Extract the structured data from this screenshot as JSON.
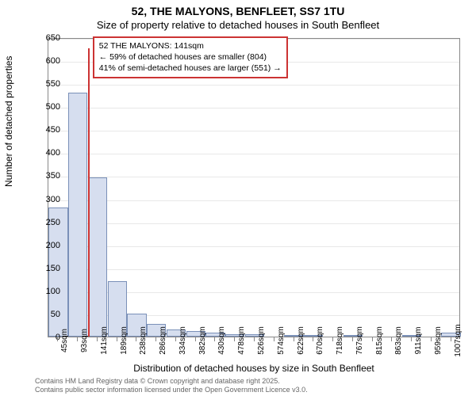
{
  "title": "52, THE MALYONS, BENFLEET, SS7 1TU",
  "subtitle": "Size of property relative to detached houses in South Benfleet",
  "y_label": "Number of detached properties",
  "x_label": "Distribution of detached houses by size in South Benfleet",
  "footnote_line1": "Contains HM Land Registry data © Crown copyright and database right 2025.",
  "footnote_line2": "Contains public sector information licensed under the Open Government Licence v3.0.",
  "chart": {
    "type": "bar",
    "ylim": [
      0,
      650
    ],
    "y_ticks": [
      0,
      50,
      100,
      150,
      200,
      250,
      300,
      350,
      400,
      450,
      500,
      550,
      600,
      650
    ],
    "x_tick_labels": [
      "45sqm",
      "93sqm",
      "141sqm",
      "189sqm",
      "238sqm",
      "286sqm",
      "334sqm",
      "382sqm",
      "430sqm",
      "478sqm",
      "526sqm",
      "574sqm",
      "622sqm",
      "670sqm",
      "718sqm",
      "767sqm",
      "815sqm",
      "863sqm",
      "911sqm",
      "959sqm",
      "1007sqm"
    ],
    "values": [
      280,
      530,
      345,
      120,
      50,
      28,
      15,
      12,
      8,
      6,
      5,
      0,
      3,
      2,
      0,
      2,
      0,
      0,
      2,
      0,
      8
    ],
    "bar_fill": "#d6deef",
    "bar_border": "#7a90b8",
    "grid_color": "#e8e8e8",
    "background": "#ffffff",
    "marker_x_index": 2,
    "marker_color": "#cc3333",
    "info_box": {
      "line1": "52 THE MALYONS: 141sqm",
      "line2": "← 59% of detached houses are smaller (804)",
      "line3": "41% of semi-detached houses are larger (551) →"
    },
    "title_fontsize": 14,
    "label_fontsize": 12,
    "tick_fontsize": 11
  }
}
